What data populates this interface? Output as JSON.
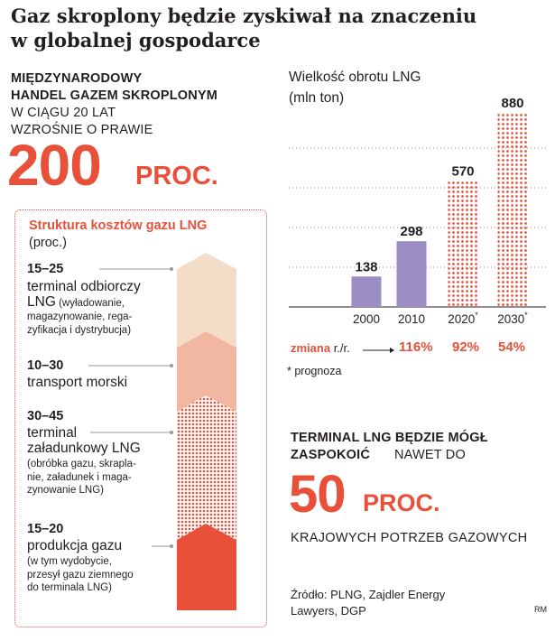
{
  "headline": {
    "line1": "Gaz skroplony będzie zyskiwał na znaczeniu",
    "line2": "w globalnej gospodarce"
  },
  "lead": {
    "bold_line1": "MIĘDZYNARODOWY",
    "bold_line2": "HANDEL GAZEM SKROPLONYM",
    "line3": "W CIĄGU 20 LAT",
    "line4": "WZROŚNIE O PRAWIE",
    "big_number": "200",
    "big_unit": "PROC."
  },
  "cost_structure": {
    "title": "Struktura kosztów gazu LNG",
    "unit": "(proc.)",
    "segments": [
      {
        "range": "15–25",
        "label_line1": "terminal odbiorczy",
        "label_line2": "LNG",
        "label_line2_sub": " (wyładowanie,",
        "sub": [
          "magazynowanie, rega-",
          "zyfikacja i dystrybucja)"
        ],
        "color": "#f3ddc9"
      },
      {
        "range": "10–30",
        "label_line1": "transport morski",
        "label_line2": "",
        "label_line2_sub": "",
        "sub": [],
        "color": "#f1b7a0"
      },
      {
        "range": "30–45",
        "label_line1": "terminal",
        "label_line2": "załadunkowy LNG",
        "label_line2_sub": "",
        "sub": [
          "(obróbka gazu, skrapla-",
          "nie, załadunek i maga-",
          "zynowanie LNG)"
        ],
        "color": "#e8503a"
      },
      {
        "range": "15–20",
        "label_line1": "produkcja gazu",
        "label_line2": "",
        "label_line2_sub": "",
        "sub": [
          "(w tym wydobycie,",
          "przesył gazu ziemnego",
          "do terminala LNG)"
        ],
        "color": "#e8503a"
      }
    ]
  },
  "chart_data": {
    "type": "bar",
    "title": "Wielkość obrotu LNG",
    "subtitle": "(mln ton)",
    "categories": [
      "2000",
      "2010",
      "2020",
      "2030"
    ],
    "category_marks": [
      "",
      "",
      "*",
      "*"
    ],
    "values": [
      138,
      298,
      570,
      880
    ],
    "forecast": [
      false,
      false,
      true,
      true
    ],
    "change_label_bold": "zmiana",
    "change_label": " r./r.",
    "changes": [
      "116%",
      "92%",
      "54%"
    ],
    "footnote": "* prognoza",
    "ylim": [
      0,
      900
    ],
    "grid": true,
    "colors": {
      "actual": "#9c8ec5",
      "forecast": "#e8503a"
    }
  },
  "terminal": {
    "bold_text": "TERMINAL LNG BĘDZIE MÓGŁ",
    "bold_text2": "ZASPOKOIĆ",
    "norm_text": "NAWET DO",
    "big_number": "50",
    "big_unit": "PROC.",
    "tail": "KRAJOWYCH POTRZEB GAZOWYCH"
  },
  "source": {
    "line1": "Źródło: PLNG, Zajdler Energy",
    "line2": "Lawyers, DGP",
    "credit": "RM"
  },
  "colors": {
    "accent": "#e8503a",
    "text": "#231f20",
    "purple": "#9c8ec5"
  }
}
